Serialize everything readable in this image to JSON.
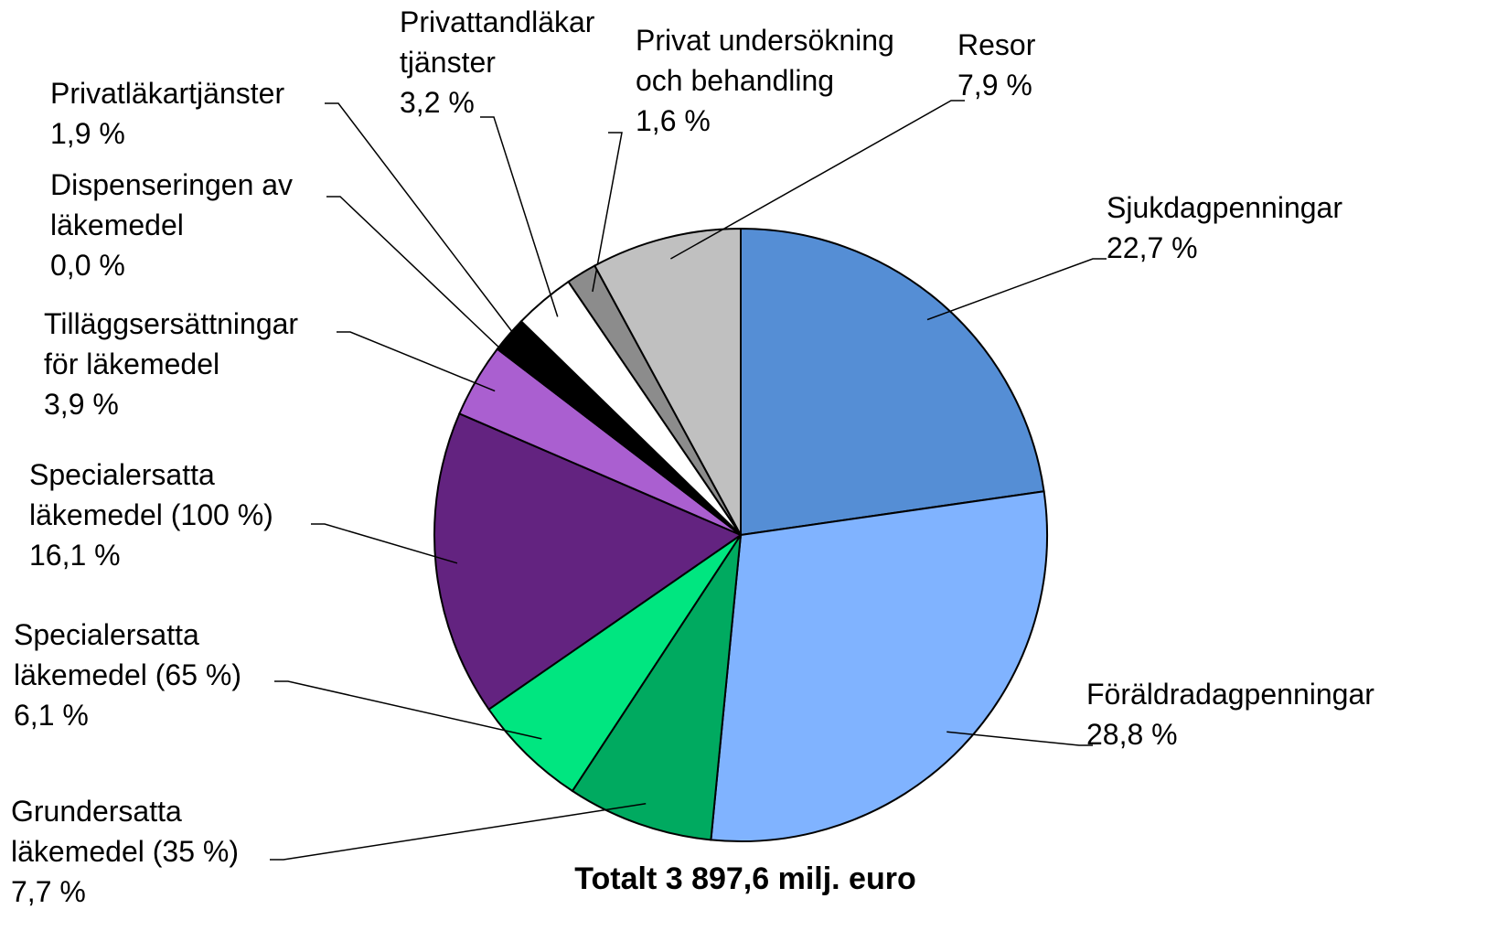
{
  "chart_data": {
    "type": "pie",
    "title": "Totalt 3 897,6 milj. euro",
    "categories": [
      "Sjukdagpenningar",
      "Föräldradagpenningar",
      "Grundersatta\nläkemedel (35 %)",
      "Specialersatta\nläkemedel (65 %)",
      "Specialersatta\nläkemedel (100 %)",
      "Tilläggsersättningar\nför läkemedel",
      "Dispenseringen av\nläkemedel",
      "Privatläkartjänster",
      "Privattandläkar\ntjänster",
      "Privat undersökning\noch behandling",
      "Resor"
    ],
    "values": [
      22.7,
      28.8,
      7.7,
      6.1,
      16.1,
      3.9,
      0.0,
      1.9,
      3.2,
      1.6,
      7.9
    ],
    "value_labels": [
      "22,7 %",
      "28,8 %",
      "7,7 %",
      "6,1 %",
      "16,1 %",
      "3,9 %",
      "0,0 %",
      "1,9 %",
      "3,2 %",
      "1,6 %",
      "7,9 %"
    ],
    "colors": [
      "#558ed5",
      "#80b3ff",
      "#00aa60",
      "#00e680",
      "#632380",
      "#aa5fd0",
      "#7030a0",
      "#000000",
      "#ffffff",
      "#8c8c8c",
      "#c0c0c0"
    ]
  }
}
